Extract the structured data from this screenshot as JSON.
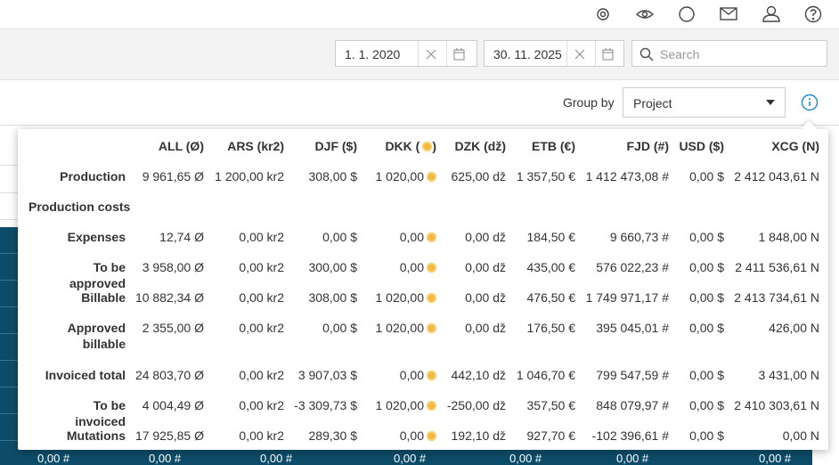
{
  "toolbar": {
    "date_from": "1. 1. 2020",
    "date_to": "30. 11. 2025",
    "search_placeholder": "Search",
    "group_by_label": "Group by",
    "group_by_value": "Project"
  },
  "table": {
    "columns": [
      "ALL (Ø)",
      "ARS (kr2)",
      "DJF ($)",
      [
        "DKK (",
        ")"
      ],
      "DZK (dž)",
      "ETB (€)",
      "FJD (#)",
      "USD ($)",
      "XCG (N)"
    ],
    "rows": [
      {
        "label": "Production",
        "cells": [
          "9 961,65 Ø",
          "1 200,00 kr2",
          "308,00 $",
          "1 020,00",
          "625,00 dž",
          "1 357,50 €",
          "1 412 473,08 #",
          "0,00 $",
          "2 412 043,61 N"
        ]
      },
      {
        "label": "Production costs",
        "cells": []
      },
      {
        "label": "Expenses",
        "cells": [
          "12,74 Ø",
          "0,00 kr2",
          "0,00 $",
          "0,00",
          "0,00 dž",
          "184,50 €",
          "9 660,73 #",
          "0,00 $",
          "1 848,00 N"
        ]
      },
      {
        "label": "To be approved",
        "cells": [
          "3 958,00 Ø",
          "0,00 kr2",
          "300,00 $",
          "0,00",
          "0,00 dž",
          "435,00 €",
          "576 022,23 #",
          "0,00 $",
          "2 411 536,61 N"
        ]
      },
      {
        "label": "Billable",
        "cells": [
          "10 882,34 Ø",
          "0,00 kr2",
          "308,00 $",
          "1 020,00",
          "0,00 dž",
          "476,50 €",
          "1 749 971,17 #",
          "0,00 $",
          "2 413 734,61 N"
        ]
      },
      {
        "label": "Approved billable",
        "cells": [
          "2 355,00 Ø",
          "0,00 kr2",
          "0,00 $",
          "1 020,00",
          "0,00 dž",
          "176,50 €",
          "395 045,01 #",
          "0,00 $",
          "426,00 N"
        ]
      },
      {
        "label": "Invoiced total",
        "cells": [
          "24 803,70 Ø",
          "0,00 kr2",
          "3 907,03 $",
          "0,00",
          "442,10 dž",
          "1 046,70 €",
          "799 547,59 #",
          "0,00 $",
          "3 431,00 N"
        ]
      },
      {
        "label": "To be invoiced",
        "cells": [
          "4 004,49 Ø",
          "0,00 kr2",
          "-3 309,73 $",
          "1 020,00",
          "-250,00 dž",
          "357,50 €",
          "848 079,97 #",
          "0,00 $",
          "2 410 303,61 N"
        ]
      },
      {
        "label": "Mutations",
        "cells": [
          "17 925,85 Ø",
          "0,00 kr2",
          "289,30 $",
          "0,00",
          "192,10 dž",
          "927,70 €",
          "-102 396,61 #",
          "0,00 $",
          "0,00 N"
        ]
      }
    ]
  },
  "background": {
    "footer_cells": [
      "0,00 #",
      "0,00 #",
      "0,00 #",
      "0,00 #",
      "0,00 #",
      "0,00 #",
      "0,00 #"
    ]
  }
}
